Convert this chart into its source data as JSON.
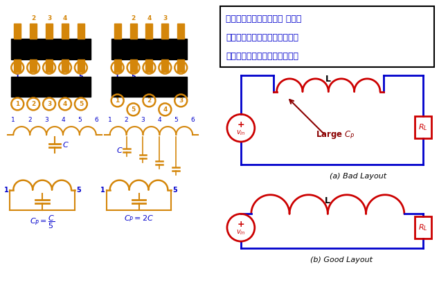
{
  "bg_color": "#ffffff",
  "orange": "#D4860A",
  "blue": "#0000CC",
  "red": "#CC0000",
  "dark_red": "#8B0000",
  "black": "#000000",
  "text_line1": "电源步板基本要点之二： 电感的",
  "text_line2": "寄生串联电容量应该尽量减小。",
  "text_line3": "电感引脚之间的距离越远越好。"
}
